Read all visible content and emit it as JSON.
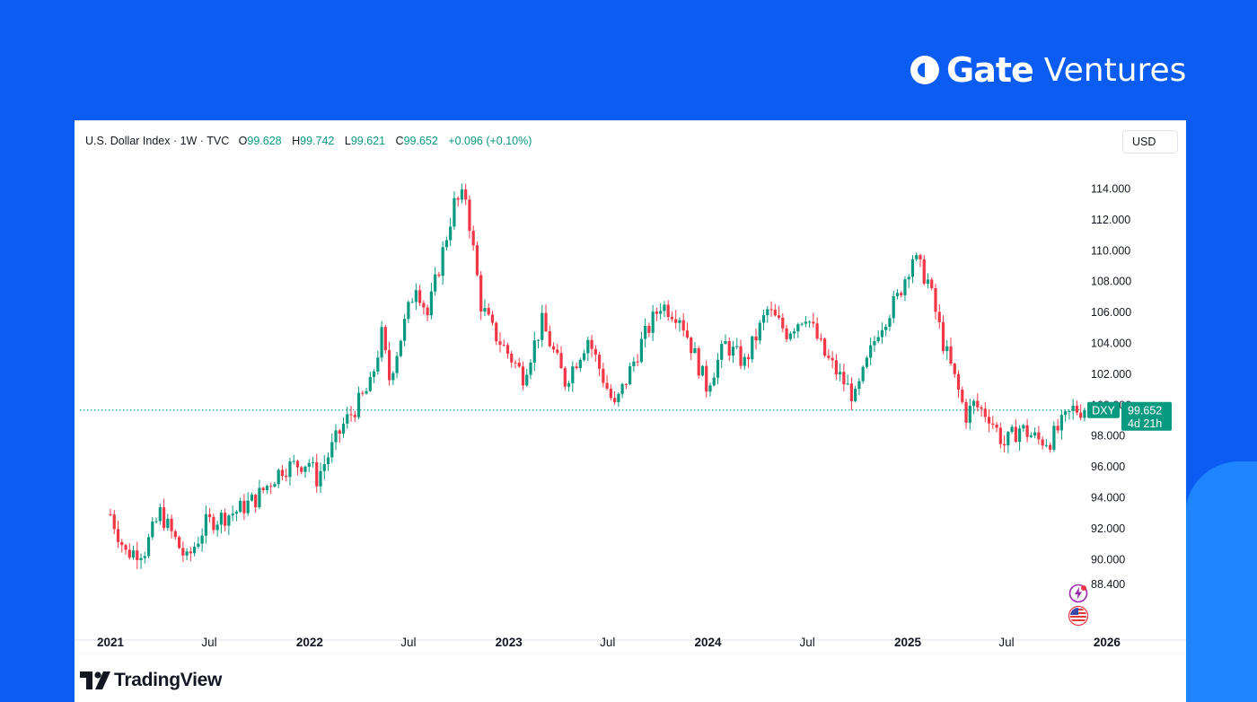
{
  "brand": {
    "gate": "Gate",
    "ventures": "Ventures"
  },
  "header": {
    "symbol": "U.S. Dollar Index · 1W · TVC",
    "o_label": "O",
    "o_value": "99.628",
    "h_label": "H",
    "h_value": "99.742",
    "l_label": "L",
    "l_value": "99.621",
    "c_label": "C",
    "c_value": "99.652",
    "change": "+0.096 (+0.10%)"
  },
  "currency_button": "USD",
  "footer": {
    "logo_text": "TradingView"
  },
  "colors": {
    "up": "#089981",
    "down": "#f23645",
    "background": "#0a5cf2",
    "card": "#ffffff"
  },
  "icons": [
    "lightning-event-icon",
    "us-flag-icon",
    "tradingview-logo-icon"
  ],
  "chart_data": {
    "type": "candlestick",
    "symbol_tag": "DXY",
    "last_price_label": "99.652",
    "countdown_label": "4d 21h",
    "y_ticks": [
      "114.000",
      "112.000",
      "110.000",
      "108.000",
      "106.000",
      "104.000",
      "102.000",
      "100.000",
      "98.000",
      "96.000",
      "94.000",
      "92.000",
      "90.000",
      "88.400"
    ],
    "x_ticks": [
      "2021",
      "Jul",
      "2022",
      "Jul",
      "2023",
      "Jul",
      "2024",
      "Jul",
      "2025",
      "Jul",
      "2026"
    ],
    "ylim": [
      87.6,
      115.0
    ],
    "x_range": [
      "2021-01-01",
      "2025-11-23"
    ],
    "last_price": 99.652,
    "grid": false,
    "anchors": [
      [
        "2021-01-01",
        92.9
      ],
      [
        "2021-01-29",
        90.4
      ],
      [
        "2021-03-05",
        90.6
      ],
      [
        "2021-04-02",
        93.0
      ],
      [
        "2021-05-21",
        89.9
      ],
      [
        "2021-06-25",
        92.3
      ],
      [
        "2021-08-20",
        93.1
      ],
      [
        "2021-09-24",
        93.9
      ],
      [
        "2021-11-12",
        95.9
      ],
      [
        "2021-12-31",
        96.3
      ],
      [
        "2022-01-14",
        95.2
      ],
      [
        "2022-03-04",
        98.7
      ],
      [
        "2022-04-22",
        101.2
      ],
      [
        "2022-05-13",
        104.5
      ],
      [
        "2022-05-27",
        101.7
      ],
      [
        "2022-07-15",
        107.9
      ],
      [
        "2022-08-05",
        105.8
      ],
      [
        "2022-09-23",
        113.0
      ],
      [
        "2022-10-14",
        113.5
      ],
      [
        "2022-11-11",
        106.5
      ],
      [
        "2022-12-02",
        104.8
      ],
      [
        "2023-01-27",
        101.9
      ],
      [
        "2023-03-03",
        105.3
      ],
      [
        "2023-04-14",
        101.5
      ],
      [
        "2023-05-26",
        104.3
      ],
      [
        "2023-07-14",
        99.8
      ],
      [
        "2023-09-01",
        104.0
      ],
      [
        "2023-10-06",
        106.5
      ],
      [
        "2023-11-10",
        105.8
      ],
      [
        "2023-12-29",
        101.2
      ],
      [
        "2024-02-02",
        103.9
      ],
      [
        "2024-03-08",
        102.7
      ],
      [
        "2024-04-19",
        106.1
      ],
      [
        "2024-05-24",
        104.7
      ],
      [
        "2024-06-28",
        105.9
      ],
      [
        "2024-08-02",
        103.2
      ],
      [
        "2024-09-27",
        100.4
      ],
      [
        "2024-11-08",
        104.9
      ],
      [
        "2024-12-13",
        106.9
      ],
      [
        "2025-01-10",
        109.6
      ],
      [
        "2025-02-07",
        108.0
      ],
      [
        "2025-03-07",
        104.0
      ],
      [
        "2025-04-18",
        99.3
      ],
      [
        "2025-05-02",
        100.0
      ],
      [
        "2025-05-30",
        99.3
      ],
      [
        "2025-06-27",
        97.4
      ],
      [
        "2025-07-25",
        98.5
      ],
      [
        "2025-08-29",
        97.7
      ],
      [
        "2025-09-19",
        97.7
      ],
      [
        "2025-10-31",
        99.7
      ],
      [
        "2025-11-21",
        99.652
      ]
    ]
  }
}
